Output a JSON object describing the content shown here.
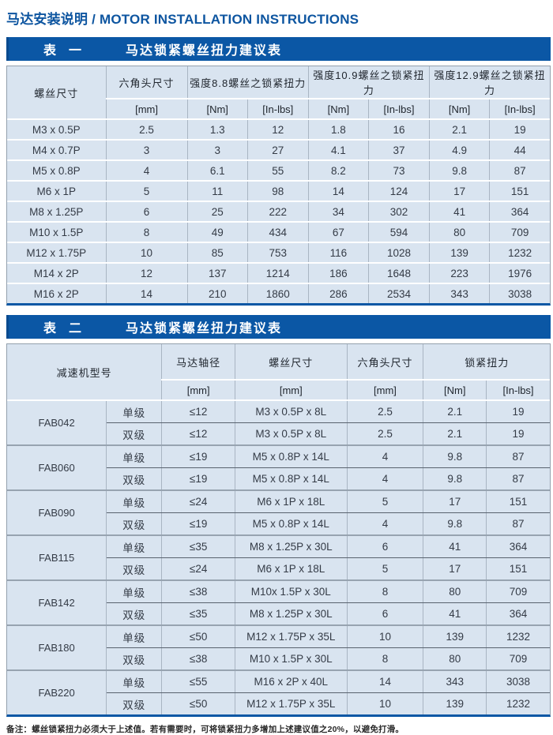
{
  "page": {
    "title": "马达安装说明 / MOTOR INSTALLATION INSTRUCTIONS",
    "footnote": "备注：螺丝锁紧扭力必须大于上述值。若有需要时，可将锁紧扭力多增加上述建议值之20%，以避免打滑。"
  },
  "colors": {
    "banner_blue": "#0b57a5",
    "title_blue": "#0d55a0",
    "cell_background": "#d9e4f0",
    "grid_line": "#a9b5c3",
    "dark_row_line": "#59636f"
  },
  "table1": {
    "banner": {
      "label": "表　一",
      "title": "马达锁紧螺丝扭力建议表"
    },
    "header": {
      "col1": "螺丝尺寸",
      "col2": "六角头尺寸",
      "groups": [
        "强度8.8螺丝之锁紧扭力",
        "强度10.9螺丝之锁紧扭力",
        "强度12.9螺丝之锁紧扭力"
      ],
      "units": [
        "[mm]",
        "[Nm]",
        "[In-lbs]",
        "[Nm]",
        "[In-lbs]",
        "[Nm]",
        "[In-lbs]"
      ]
    },
    "rows": [
      [
        "M3 x 0.5P",
        "2.5",
        "1.3",
        "12",
        "1.8",
        "16",
        "2.1",
        "19"
      ],
      [
        "M4 x 0.7P",
        "3",
        "3",
        "27",
        "4.1",
        "37",
        "4.9",
        "44"
      ],
      [
        "M5 x 0.8P",
        "4",
        "6.1",
        "55",
        "8.2",
        "73",
        "9.8",
        "87"
      ],
      [
        "M6 x 1P",
        "5",
        "11",
        "98",
        "14",
        "124",
        "17",
        "151"
      ],
      [
        "M8 x 1.25P",
        "6",
        "25",
        "222",
        "34",
        "302",
        "41",
        "364"
      ],
      [
        "M10 x 1.5P",
        "8",
        "49",
        "434",
        "67",
        "594",
        "80",
        "709"
      ],
      [
        "M12 x 1.75P",
        "10",
        "85",
        "753",
        "116",
        "1028",
        "139",
        "1232"
      ],
      [
        "M14 x 2P",
        "12",
        "137",
        "1214",
        "186",
        "1648",
        "223",
        "1976"
      ],
      [
        "M16 x 2P",
        "14",
        "210",
        "1860",
        "286",
        "2534",
        "343",
        "3038"
      ]
    ]
  },
  "table2": {
    "banner": {
      "label": "表　二",
      "title": "马达锁紧螺丝扭力建议表"
    },
    "header": {
      "col1": "减速机型号",
      "cols": [
        "马达轴径",
        "螺丝尺寸",
        "六角头尺寸"
      ],
      "torque": "锁紧扭力",
      "units": [
        "[mm]",
        "[mm]",
        "[mm]",
        "[Nm]",
        "[In-lbs]"
      ]
    },
    "groups": [
      {
        "model": "FAB042",
        "rows": [
          [
            "单级",
            "≤12",
            "M3 x 0.5P x 8L",
            "2.5",
            "2.1",
            "19"
          ],
          [
            "双级",
            "≤12",
            "M3 x 0.5P x 8L",
            "2.5",
            "2.1",
            "19"
          ]
        ]
      },
      {
        "model": "FAB060",
        "rows": [
          [
            "单级",
            "≤19",
            "M5 x 0.8P x 14L",
            "4",
            "9.8",
            "87"
          ],
          [
            "双级",
            "≤19",
            "M5 x 0.8P x 14L",
            "4",
            "9.8",
            "87"
          ]
        ]
      },
      {
        "model": "FAB090",
        "rows": [
          [
            "单级",
            "≤24",
            "M6 x 1P x 18L",
            "5",
            "17",
            "151"
          ],
          [
            "双级",
            "≤19",
            "M5 x 0.8P x 14L",
            "4",
            "9.8",
            "87"
          ]
        ]
      },
      {
        "model": "FAB115",
        "rows": [
          [
            "单级",
            "≤35",
            "M8 x 1.25P x 30L",
            "6",
            "41",
            "364"
          ],
          [
            "双级",
            "≤24",
            "M6 x 1P x 18L",
            "5",
            "17",
            "151"
          ]
        ]
      },
      {
        "model": "FAB142",
        "rows": [
          [
            "单级",
            "≤38",
            "M10x 1.5P x 30L",
            "8",
            "80",
            "709"
          ],
          [
            "双级",
            "≤35",
            "M8 x 1.25P x 30L",
            "6",
            "41",
            "364"
          ]
        ]
      },
      {
        "model": "FAB180",
        "rows": [
          [
            "单级",
            "≤50",
            "M12 x 1.75P x 35L",
            "10",
            "139",
            "1232"
          ],
          [
            "双级",
            "≤38",
            "M10 x 1.5P x 30L",
            "8",
            "80",
            "709"
          ]
        ]
      },
      {
        "model": "FAB220",
        "rows": [
          [
            "单级",
            "≤55",
            "M16 x 2P x 40L",
            "14",
            "343",
            "3038"
          ],
          [
            "双级",
            "≤50",
            "M12 x 1.75P x 35L",
            "10",
            "139",
            "1232"
          ]
        ]
      }
    ]
  }
}
